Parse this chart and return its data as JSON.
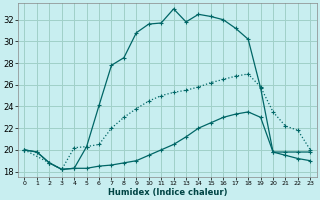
{
  "xlabel": "Humidex (Indice chaleur)",
  "bg_color": "#c8eef0",
  "grid_color": "#a0d0c8",
  "line_color": "#006666",
  "xlim": [
    -0.5,
    23.5
  ],
  "ylim": [
    17.5,
    33.5
  ],
  "xticks": [
    0,
    1,
    2,
    3,
    4,
    5,
    6,
    7,
    8,
    9,
    10,
    11,
    12,
    13,
    14,
    15,
    16,
    17,
    18,
    19,
    20,
    21,
    22,
    23
  ],
  "yticks": [
    18,
    20,
    22,
    24,
    26,
    28,
    30,
    32
  ],
  "s1_x": [
    0,
    1,
    2,
    3,
    4,
    5,
    6,
    7,
    8,
    9,
    10,
    11,
    12,
    13,
    14,
    15,
    16,
    17,
    18,
    19,
    20,
    21,
    22,
    23
  ],
  "s1_y": [
    20.0,
    19.8,
    18.8,
    18.2,
    18.3,
    20.3,
    24.1,
    27.8,
    28.5,
    30.8,
    31.6,
    31.7,
    33.0,
    31.8,
    32.5,
    32.3,
    32.0,
    31.2,
    30.2,
    25.7,
    19.8,
    19.8,
    19.8,
    19.8
  ],
  "s2_x": [
    0,
    2,
    3,
    4,
    5,
    6,
    7,
    8,
    9,
    10,
    11,
    12,
    13,
    14,
    15,
    16,
    17,
    18,
    19,
    20,
    21,
    22,
    23
  ],
  "s2_y": [
    20.0,
    18.8,
    18.2,
    20.2,
    20.3,
    20.5,
    22.0,
    23.0,
    23.8,
    24.5,
    25.0,
    25.3,
    25.5,
    25.8,
    26.2,
    26.5,
    26.8,
    27.0,
    25.8,
    23.5,
    22.2,
    21.8,
    20.0
  ],
  "s3_x": [
    0,
    1,
    2,
    3,
    4,
    5,
    6,
    7,
    8,
    9,
    10,
    11,
    12,
    13,
    14,
    15,
    16,
    17,
    18,
    19,
    20,
    21,
    22,
    23
  ],
  "s3_y": [
    20.0,
    19.8,
    18.8,
    18.2,
    18.3,
    18.3,
    18.5,
    18.6,
    18.8,
    19.0,
    19.5,
    20.0,
    20.5,
    21.2,
    22.0,
    22.5,
    23.0,
    23.3,
    23.5,
    23.0,
    19.8,
    19.5,
    19.2,
    19.0
  ]
}
